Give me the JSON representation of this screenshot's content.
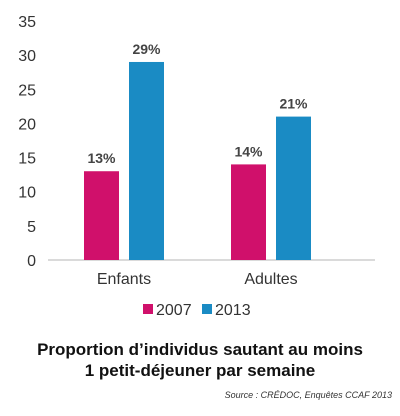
{
  "chart_data": {
    "type": "bar",
    "categories": [
      "Enfants",
      "Adultes"
    ],
    "series": [
      {
        "name": "2007",
        "values": [
          13,
          14
        ],
        "labels": [
          "13%",
          "14%"
        ],
        "color": "#d0106b"
      },
      {
        "name": "2013",
        "values": [
          29,
          21
        ],
        "labels": [
          "29%",
          "21%"
        ],
        "color": "#1a8bc4"
      }
    ],
    "ylim": [
      0,
      35
    ],
    "yticks": [
      0,
      5,
      10,
      15,
      20,
      25,
      30,
      35
    ],
    "grid": false,
    "legend_position": "bottom",
    "title_lines": [
      "Proportion d’individus sautant au moins",
      "1 petit-déjeuner par semaine"
    ],
    "source": "Source : CRÉDOC, Enquêtes CCAF 2013"
  }
}
